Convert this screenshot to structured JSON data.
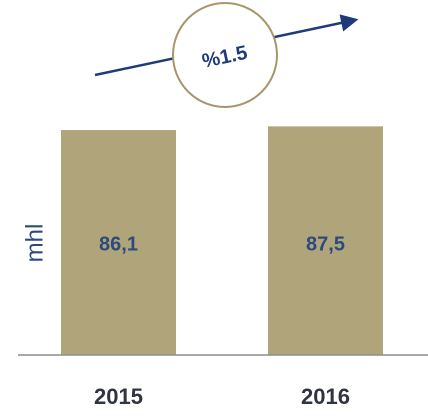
{
  "chart_data": {
    "type": "bar",
    "ylabel": "mhl",
    "annotation": "%1.5",
    "categories": [
      "2015",
      "2016"
    ],
    "values": [
      86.1,
      87.5
    ],
    "value_labels": [
      "86,1",
      "87,5"
    ],
    "color": "#b0a57a",
    "ylim": [
      0,
      100
    ]
  }
}
